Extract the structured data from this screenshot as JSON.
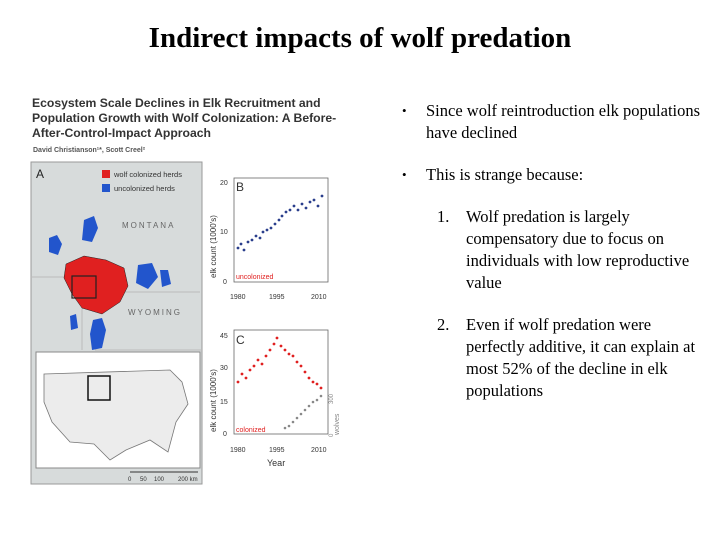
{
  "slide": {
    "title": "Indirect impacts of wolf predation"
  },
  "paper": {
    "title_lines": [
      "Ecosystem Scale Declines in Elk Recruitment and",
      "Population Growth with Wolf Colonization: A Before-",
      "After-Control-Impact Approach"
    ],
    "authors": "David Christianson¹*, Scott Creel²"
  },
  "figure": {
    "panel_a": {
      "label": "A",
      "legend": [
        {
          "label": "wolf colonized herds",
          "color": "#e02020"
        },
        {
          "label": "uncolonized herds",
          "color": "#2255cc"
        }
      ],
      "state_labels": [
        "MONTANA",
        "WYOMING"
      ],
      "scale_ticks": [
        "0",
        "50",
        "100",
        "200 km"
      ]
    },
    "panel_b": {
      "label": "B",
      "series_label": "uncolonized",
      "ylabel": "elk count (1000's)",
      "y_ticks": [
        "0",
        "10",
        "20"
      ],
      "x_ticks": [
        "1980",
        "1995",
        "2010"
      ]
    },
    "panel_c": {
      "label": "C",
      "series_label": "colonized",
      "ylabel": "elk count (1000's)",
      "y_ticks": [
        "0",
        "15",
        "30",
        "45"
      ],
      "right_label": "wolves",
      "right_ticks": [
        "0",
        "300"
      ],
      "x_ticks": [
        "1980",
        "1995",
        "2010"
      ],
      "xlabel": "Year"
    }
  },
  "bullets": [
    {
      "text": "Since wolf reintroduction elk populations have declined"
    },
    {
      "text": "This is strange because:"
    }
  ],
  "numbered": [
    {
      "num": "1.",
      "text": "Wolf predation is largely compensatory due to focus on individuals with low reproductive value"
    },
    {
      "num": "2.",
      "text": "Even if wolf predation were perfectly additive, it can explain at most 52% of the decline in elk populations"
    }
  ]
}
